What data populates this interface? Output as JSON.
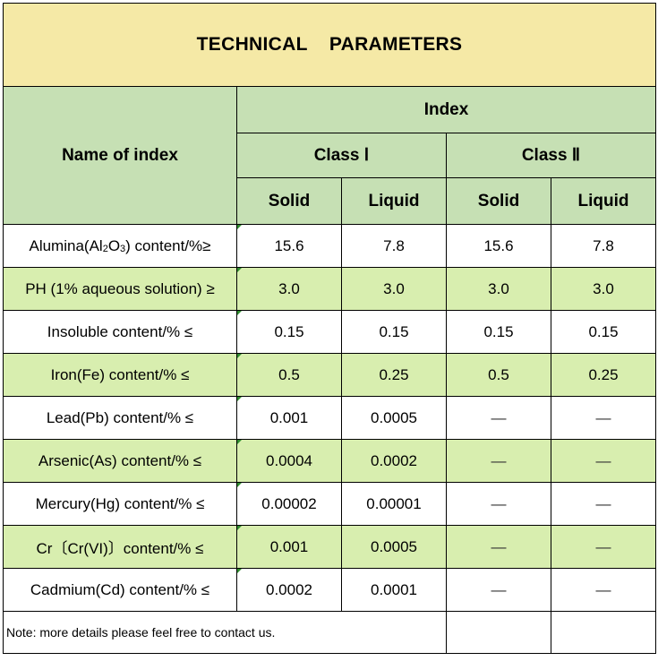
{
  "title": {
    "part1": "TECHNICAL",
    "part2": "PARAMETERS"
  },
  "header": {
    "name_label": "Name of index",
    "index_label": "Index",
    "class1_label": "Class Ⅰ",
    "class2_label": "Class Ⅱ",
    "forms": [
      "Solid",
      "Liquid",
      "Solid",
      "Liquid"
    ]
  },
  "rows": [
    {
      "name_pre": "Alumina(Al",
      "sub1": "2",
      "name_mid": "O",
      "sub2": "3",
      "name_post": ") content/%≥",
      "values": [
        "15.6",
        "7.8",
        "15.6",
        "7.8"
      ]
    },
    {
      "name": "PH (1% aqueous solution) ≥",
      "values": [
        "3.0",
        "3.0",
        "3.0",
        "3.0"
      ]
    },
    {
      "name": "Insoluble content/% ≤",
      "values": [
        "0.15",
        "0.15",
        "0.15",
        "0.15"
      ]
    },
    {
      "name": "Iron(Fe) content/% ≤",
      "values": [
        "0.5",
        "0.25",
        "0.5",
        "0.25"
      ]
    },
    {
      "name": "Lead(Pb) content/% ≤",
      "values": [
        "0.001",
        "0.0005",
        "—",
        "—"
      ]
    },
    {
      "name": "Arsenic(As) content/% ≤",
      "values": [
        "0.0004",
        "0.0002",
        "—",
        "—"
      ]
    },
    {
      "name": "Mercury(Hg) content/% ≤",
      "values": [
        "0.00002",
        "0.00001",
        "—",
        "—"
      ]
    },
    {
      "name": "Cr〔Cr(VI)〕content/% ≤",
      "values": [
        "0.001",
        "0.0005",
        "—",
        "—"
      ]
    },
    {
      "name": "Cadmium(Cd) content/% ≤",
      "values": [
        "0.0002",
        "0.0001",
        "—",
        "—"
      ]
    }
  ],
  "note": "Note: more details please feel free to contact us.",
  "colors": {
    "title_bg": "#f5e9a6",
    "header_bg": "#c6e0b4",
    "row_green": "#d8eeaf",
    "row_white": "#ffffff"
  }
}
